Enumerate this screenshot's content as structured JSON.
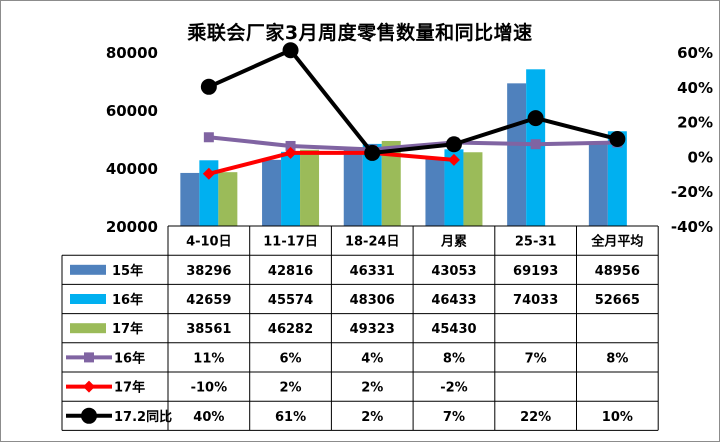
{
  "chart_data": {
    "type": "bar",
    "title": "乘联会厂家3月周度零售数量和同比增速",
    "categories": [
      "4-10日",
      "11-17日",
      "18-24日",
      "月累",
      "25-31",
      "全月平均"
    ],
    "y_left": {
      "ticks": [
        "80000",
        "60000",
        "40000",
        "20000"
      ],
      "ylim": [
        20000,
        80000
      ]
    },
    "y_right": {
      "ticks": [
        "60%",
        "40%",
        "20%",
        "0%",
        "-20%",
        "-40%"
      ],
      "ylim": [
        -0.4,
        0.6
      ]
    },
    "bar_series": [
      {
        "name": "15年",
        "color": "#4f81bd",
        "values": [
          38296,
          42816,
          46331,
          43053,
          69193,
          48956
        ],
        "labels": [
          "38296",
          "42816",
          "46331",
          "43053",
          "69193",
          "48956"
        ]
      },
      {
        "name": "16年",
        "color": "#00b0f0",
        "values": [
          42659,
          45574,
          48306,
          46433,
          74033,
          52665
        ],
        "labels": [
          "42659",
          "45574",
          "48306",
          "46433",
          "74033",
          "52665"
        ]
      },
      {
        "name": "17年",
        "color": "#9bbb59",
        "values": [
          38561,
          46282,
          49323,
          45430,
          null,
          null
        ],
        "labels": [
          "38561",
          "46282",
          "49323",
          "45430",
          "",
          ""
        ]
      }
    ],
    "line_series": [
      {
        "name": "16年",
        "color": "#8064a2",
        "marker": "square",
        "values": [
          0.11,
          0.06,
          0.04,
          0.08,
          0.07,
          0.08
        ],
        "labels": [
          "11%",
          "6%",
          "4%",
          "8%",
          "7%",
          "8%"
        ]
      },
      {
        "name": "17年",
        "color": "#ff0000",
        "marker": "diamond",
        "values": [
          -0.1,
          0.02,
          0.02,
          -0.02,
          null,
          null
        ],
        "labels": [
          "-10%",
          "2%",
          "2%",
          "-2%",
          "",
          ""
        ]
      },
      {
        "name": "17.2同比",
        "color": "#000000",
        "marker": "circle",
        "values": [
          0.4,
          0.61,
          0.02,
          0.07,
          0.22,
          0.1
        ],
        "labels": [
          "40%",
          "61%",
          "2%",
          "7%",
          "22%",
          "10%"
        ]
      }
    ]
  }
}
